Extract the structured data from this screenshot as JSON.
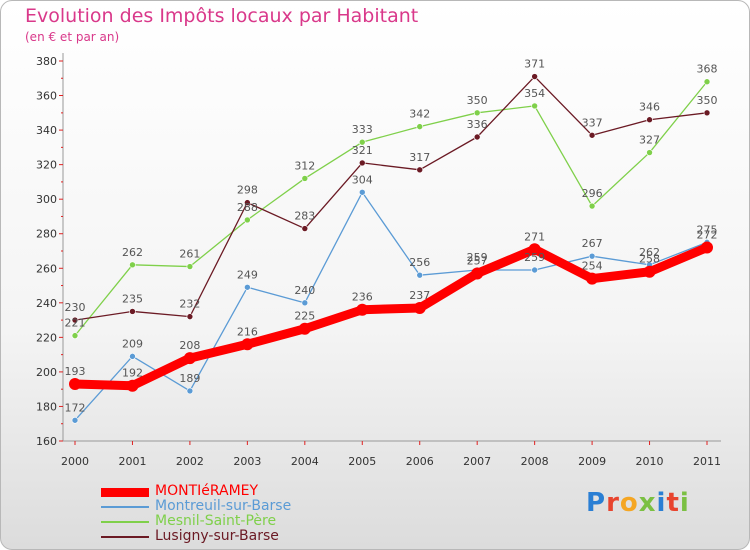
{
  "title": "Evolution des Impôts locaux par Habitant",
  "subtitle": "(en € et par an)",
  "logo": {
    "letters": [
      "P",
      "r",
      "o",
      "x",
      "i",
      "t",
      "i"
    ],
    "colors": [
      "#2a7fd4",
      "#e8442e",
      "#f5a623",
      "#7bc043",
      "#2a7fd4",
      "#e8442e",
      "#7bc043"
    ]
  },
  "chart_data": {
    "type": "line",
    "title": "Evolution des Impôts locaux par Habitant",
    "ylabel": "(en € et par an)",
    "xlabel": "",
    "ylim": [
      160,
      380
    ],
    "yticks": [
      160,
      180,
      200,
      220,
      240,
      260,
      280,
      300,
      320,
      340,
      360,
      380
    ],
    "categories": [
      "2000",
      "2001",
      "2002",
      "2003",
      "2004",
      "2005",
      "2006",
      "2007",
      "2008",
      "2009",
      "2010",
      "2011"
    ],
    "grid": false,
    "series": [
      {
        "name": "Montreuil-sur-Barse",
        "color": "#5b9bd5",
        "width": 1.3,
        "values": [
          172,
          209,
          189,
          249,
          240,
          304,
          256,
          259,
          259,
          267,
          262,
          275
        ],
        "labels": [
          "172",
          "209",
          "189",
          "249",
          "240",
          "304",
          "256",
          "259",
          "259",
          "267",
          "262",
          "275"
        ]
      },
      {
        "name": "Mesnil-Saint-Père",
        "color": "#7fd04a",
        "width": 1.3,
        "values": [
          221,
          262,
          261,
          288,
          312,
          333,
          342,
          350,
          354,
          296,
          327,
          368
        ],
        "labels": [
          "221",
          "262",
          "261",
          "288",
          "312",
          "333",
          "342",
          "350",
          "354",
          "296",
          "327",
          "368"
        ]
      },
      {
        "name": "Lusigny-sur-Barse",
        "color": "#6b1a24",
        "width": 1.3,
        "values": [
          230,
          235,
          232,
          298,
          283,
          321,
          317,
          336,
          371,
          337,
          346,
          350
        ],
        "labels": [
          "230",
          "235",
          "232",
          "298",
          "283",
          "321",
          "317",
          "336",
          "371",
          "337",
          "346",
          "350"
        ]
      },
      {
        "name": "MONTIéRAMEY",
        "color": "#ff0000",
        "width": 9,
        "values": [
          193,
          192,
          208,
          216,
          225,
          236,
          237,
          257,
          271,
          254,
          258,
          272
        ],
        "labels": [
          "193",
          "192",
          "208",
          "216",
          "225",
          "236",
          "237",
          "257",
          "271",
          "254",
          "258",
          "272"
        ]
      }
    ],
    "legend": {
      "placement": "bottom-left",
      "order": [
        "MONTIéRAMEY",
        "Montreuil-sur-Barse",
        "Mesnil-Saint-Père",
        "Lusigny-sur-Barse"
      ]
    }
  }
}
